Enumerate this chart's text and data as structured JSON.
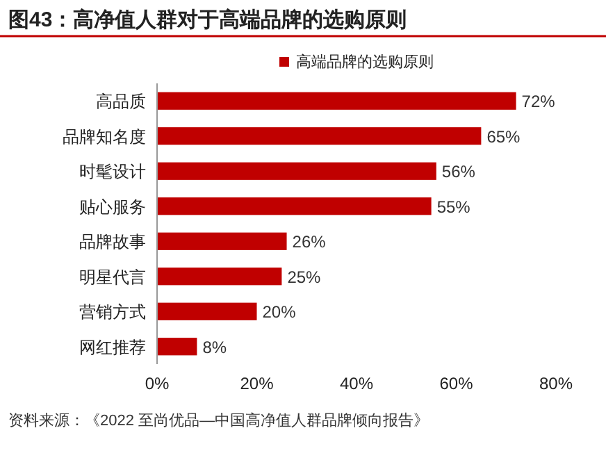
{
  "chart_data": {
    "type": "bar",
    "orientation": "horizontal",
    "title": "图43：高净值人群对于高端品牌的选购原则",
    "legend": "top",
    "categories": [
      "高品质",
      "品牌知名度",
      "时髦设计",
      "贴心服务",
      "品牌故事",
      "明星代言",
      "营销方式",
      "网红推荐"
    ],
    "series": [
      {
        "name": "高端品牌的选购原则",
        "color": "#c00000",
        "values": [
          72,
          65,
          56,
          55,
          26,
          25,
          20,
          8
        ],
        "value_labels": [
          "72%",
          "65%",
          "56%",
          "55%",
          "26%",
          "25%",
          "20%",
          "8%"
        ]
      }
    ],
    "xlim": [
      0,
      80
    ],
    "xticks": [
      {
        "value": 0,
        "label": "0%"
      },
      {
        "value": 20,
        "label": "20%"
      },
      {
        "value": 40,
        "label": "40%"
      },
      {
        "value": 60,
        "label": "60%"
      },
      {
        "value": 80,
        "label": "80%"
      }
    ],
    "annotations": [
      "资料来源：《2022 至尚优品—中国高净值人群品牌倾向报告》"
    ]
  }
}
